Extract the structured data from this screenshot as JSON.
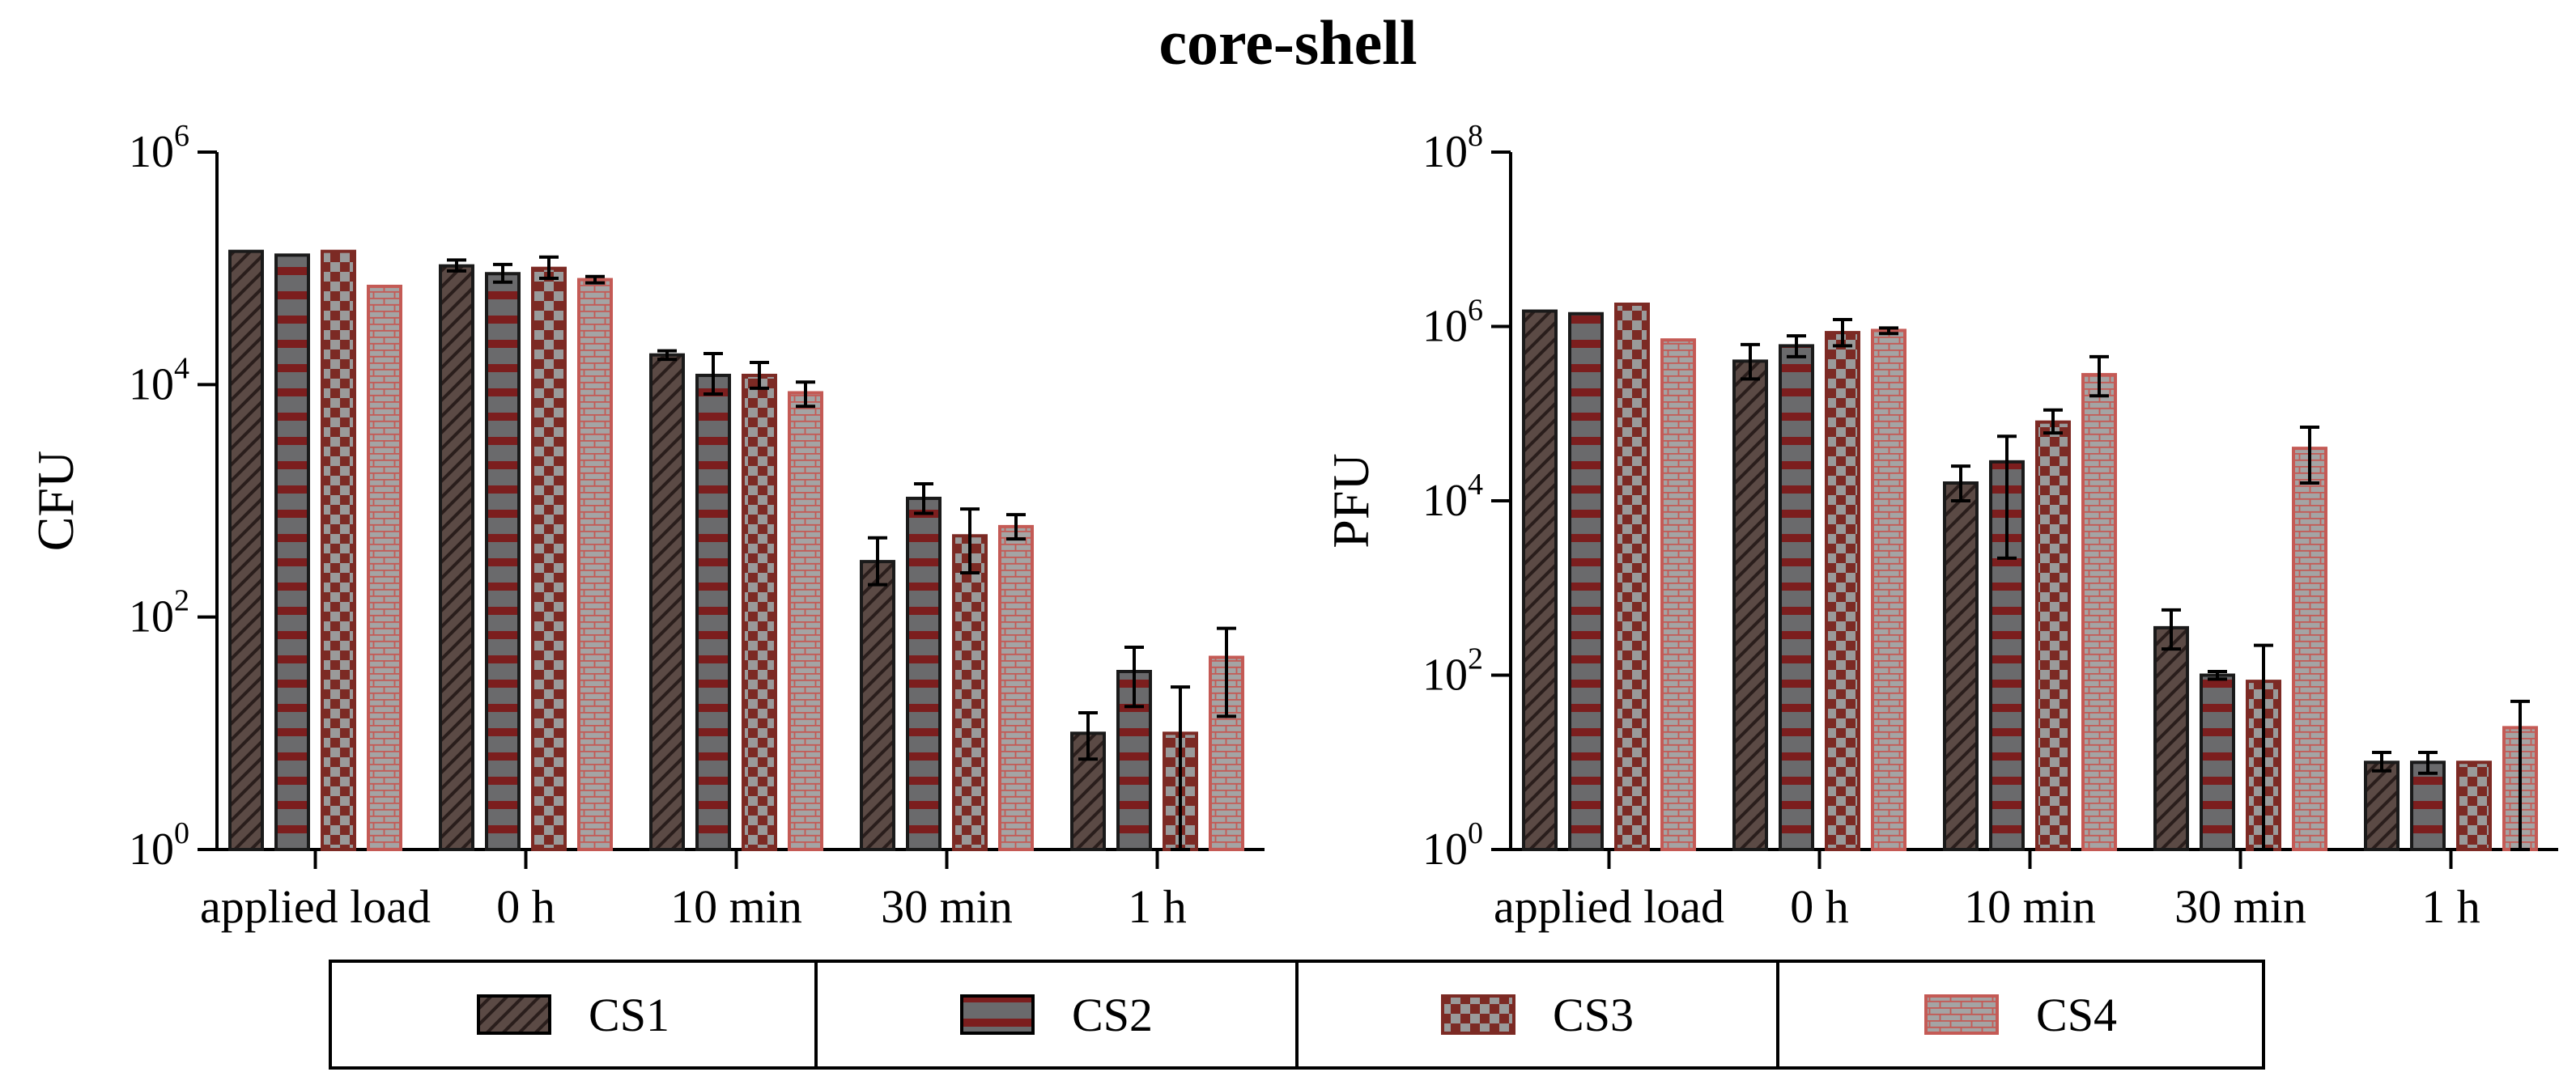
{
  "title": "core-shell",
  "chart_data": [
    {
      "type": "bar",
      "ylabel": "CFU",
      "scale": "log10",
      "ylim": [
        1,
        1000000
      ],
      "yticks": [
        {
          "base": "10",
          "exp": "0"
        },
        {
          "base": "10",
          "exp": "2"
        },
        {
          "base": "10",
          "exp": "4"
        },
        {
          "base": "10",
          "exp": "6"
        }
      ],
      "categories": [
        "applied load",
        "0 h",
        "10 min",
        "30 min",
        "1 h"
      ],
      "series": [
        {
          "name": "CS1",
          "values": [
            140000,
            105000,
            18000,
            300,
            10
          ],
          "errors": [
            [
              140000,
              140000
            ],
            [
              95000,
              118000
            ],
            [
              16500,
              19500
            ],
            [
              190,
              480
            ],
            [
              6,
              15
            ]
          ]
        },
        {
          "name": "CS2",
          "values": [
            130000,
            90000,
            12000,
            1050,
            34
          ],
          "errors": [
            [
              130000,
              130000
            ],
            [
              76000,
              108000
            ],
            [
              8300,
              18500
            ],
            [
              780,
              1400
            ],
            [
              17,
              55
            ]
          ]
        },
        {
          "name": "CS3",
          "values": [
            140000,
            100000,
            12000,
            500,
            10
          ],
          "errors": [
            [
              140000,
              140000
            ],
            [
              82000,
              125000
            ],
            [
              9300,
              15500
            ],
            [
              240,
              850
            ],
            [
              1,
              25
            ]
          ]
        },
        {
          "name": "CS4",
          "values": [
            70000,
            80000,
            8500,
            600,
            45
          ],
          "errors": [
            [
              70000,
              70000
            ],
            [
              75000,
              85000
            ],
            [
              6500,
              10500
            ],
            [
              470,
              760
            ],
            [
              14,
              80
            ]
          ]
        }
      ]
    },
    {
      "type": "bar",
      "ylabel": "PFU",
      "scale": "log10",
      "ylim": [
        1,
        100000000
      ],
      "yticks": [
        {
          "base": "10",
          "exp": "0"
        },
        {
          "base": "10",
          "exp": "2"
        },
        {
          "base": "10",
          "exp": "4"
        },
        {
          "base": "10",
          "exp": "6"
        },
        {
          "base": "10",
          "exp": "8"
        }
      ],
      "categories": [
        "applied load",
        "0 h",
        "10 min",
        "30 min",
        "1 h"
      ],
      "series": [
        {
          "name": "CS1",
          "values": [
            1500000,
            400000,
            16000,
            350,
            10
          ],
          "errors": [
            [
              1500000,
              1500000
            ],
            [
              250000,
              620000
            ],
            [
              10000,
              25000
            ],
            [
              200,
              560
            ],
            [
              8,
              13
            ]
          ]
        },
        {
          "name": "CS2",
          "values": [
            1400000,
            600000,
            28000,
            100,
            10
          ],
          "errors": [
            [
              1400000,
              1400000
            ],
            [
              450000,
              780000
            ],
            [
              2200,
              55000
            ],
            [
              90,
              110
            ],
            [
              7.5,
              13
            ]
          ]
        },
        {
          "name": "CS3",
          "values": [
            1800000,
            850000,
            80000,
            85,
            10
          ],
          "errors": [
            [
              1800000,
              1800000
            ],
            [
              600000,
              1200000
            ],
            [
              60000,
              110000
            ],
            [
              1,
              220
            ],
            [
              10,
              10
            ]
          ]
        },
        {
          "name": "CS4",
          "values": [
            700000,
            900000,
            280000,
            40000,
            25
          ],
          "errors": [
            [
              700000,
              700000
            ],
            [
              830000,
              960000
            ],
            [
              160000,
              450000
            ],
            [
              16000,
              70000
            ],
            [
              1,
              50
            ]
          ]
        }
      ]
    }
  ],
  "legend": [
    {
      "label": "CS1"
    },
    {
      "label": "CS2"
    },
    {
      "label": "CS3"
    },
    {
      "label": "CS4"
    }
  ]
}
